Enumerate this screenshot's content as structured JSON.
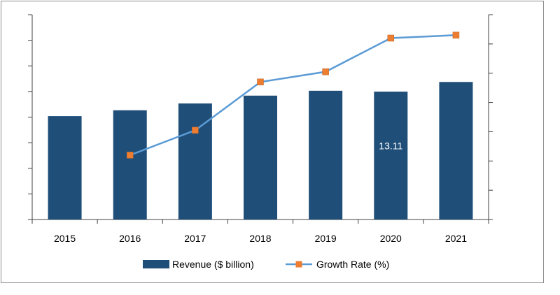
{
  "chart_data": {
    "type": "bar",
    "categories": [
      "2015",
      "2016",
      "2017",
      "2018",
      "2019",
      "2020",
      "2021"
    ],
    "series": [
      {
        "name": "Revenue ($ billion)",
        "kind": "bar",
        "axis": "left",
        "color": "#1f4e79",
        "values": [
          10.6,
          11.2,
          11.9,
          12.7,
          13.2,
          13.11,
          14.1
        ]
      },
      {
        "name": "Growth Rate (%)",
        "kind": "line",
        "axis": "right",
        "line_color": "#5b9bd5",
        "marker_color": "#ed7d31",
        "values": [
          null,
          2.2,
          3.05,
          4.7,
          5.05,
          6.2,
          6.3
        ]
      }
    ],
    "data_labels": [
      {
        "series": 0,
        "category": "2020",
        "text": "13.11"
      }
    ],
    "ylim_left": [
      0,
      21
    ],
    "ylim_right": [
      0,
      7
    ],
    "left_tick_count": 9,
    "right_tick_count": 8,
    "grid": false,
    "legend_position": "bottom",
    "title": "",
    "xlabel": "",
    "ylabel": ""
  }
}
